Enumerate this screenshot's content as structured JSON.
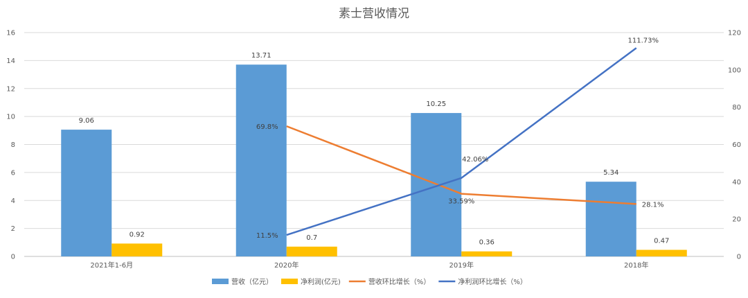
{
  "chart_data": {
    "type": "bar+line",
    "title": "素士营收情况",
    "categories": [
      "2021年1-6月",
      "2020年",
      "2019年",
      "2018年"
    ],
    "y_left": {
      "min": 0,
      "max": 16,
      "ticks": [
        "0",
        "2",
        "4",
        "6",
        "8",
        "10",
        "12",
        "14",
        "16"
      ]
    },
    "y_right": {
      "min": 0,
      "max": 120,
      "ticks": [
        "0",
        "20",
        "40",
        "60",
        "80",
        "100",
        "120"
      ]
    },
    "series": [
      {
        "name": "营收（亿元）",
        "type": "bar",
        "axis": "left",
        "color": "#5B9BD5",
        "values": [
          9.06,
          13.71,
          10.25,
          5.34
        ],
        "labels": [
          "9.06",
          "13.71",
          "10.25",
          "5.34"
        ]
      },
      {
        "name": "净利润(亿元)",
        "type": "bar",
        "axis": "left",
        "color": "#FFC000",
        "values": [
          0.92,
          0.7,
          0.36,
          0.47
        ],
        "labels": [
          "0.92",
          "0.7",
          "0.36",
          "0.47"
        ]
      },
      {
        "name": "营收环比增长（%）",
        "type": "line",
        "axis": "right",
        "color": "#ED7D31",
        "values": [
          null,
          69.8,
          33.59,
          28.1
        ],
        "labels": [
          "",
          "69.8%",
          "33.59%",
          "28.1%"
        ]
      },
      {
        "name": "净利润环比增长（%）",
        "type": "line",
        "axis": "right",
        "color": "#4472C4",
        "values": [
          null,
          11.5,
          42.06,
          111.73
        ],
        "labels": [
          "",
          "11.5%",
          "42.06%",
          "111.73%"
        ]
      }
    ],
    "legend_position": "bottom",
    "grid": true
  }
}
